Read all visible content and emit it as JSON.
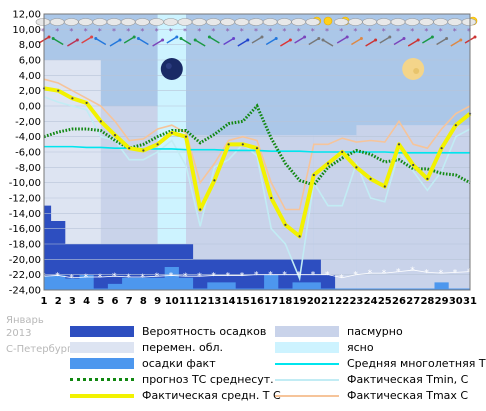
{
  "caption": {
    "month": "Январь",
    "year": "2013",
    "city": "С-Петербург"
  },
  "colors": {
    "overcast": "#c9d3ea",
    "partly_cloudy": "#dde4f2",
    "clear": "#cdf3ff",
    "precip_probability": "#2d4ec0",
    "precip_fact": "#4d97ee",
    "avg_climate": "#00e5ee",
    "forecast_avg": "#118811",
    "tmin": "#c2ecf4",
    "tmax": "#f6c49a",
    "actual_avg": "#f2f200"
  },
  "legend": [
    {
      "key": "precip_probability",
      "label": "Вероятность осадков",
      "kind": "box"
    },
    {
      "key": "overcast",
      "label": "пасмурно",
      "kind": "box"
    },
    {
      "key": "partly_cloudy",
      "label": "перемен. обл.",
      "kind": "box"
    },
    {
      "key": "clear",
      "label": "ясно",
      "kind": "box"
    },
    {
      "key": "precip_fact",
      "label": "осадки факт",
      "kind": "box"
    },
    {
      "key": "avg_climate",
      "label": "Средняя многолетняя Т С",
      "kind": "line"
    },
    {
      "key": "forecast_avg",
      "label": "прогноз ТС среднесут.",
      "kind": "dots"
    },
    {
      "key": "tmin",
      "label": "Фактическая Tmin, C",
      "kind": "line"
    },
    {
      "key": "actual_avg",
      "label": "Фактическая средн. Т С",
      "kind": "thick"
    },
    {
      "key": "tmax",
      "label": "Фактическая Tmax C",
      "kind": "line"
    }
  ],
  "chart_data": {
    "type": "line",
    "x_ticks": [
      "1",
      "2",
      "3",
      "4",
      "5",
      "6",
      "7",
      "8",
      "9",
      "10",
      "11",
      "12",
      "13",
      "14",
      "15",
      "16",
      "17",
      "18",
      "19",
      "20",
      "21",
      "22",
      "23",
      "24",
      "25",
      "26",
      "27",
      "28",
      "29",
      "30",
      "31"
    ],
    "y_ticks": [
      "12,00",
      "10,00",
      "8,00",
      "6,00",
      "4,00",
      "2,00",
      "0,00",
      "-2,00",
      "-4,00",
      "-6,00",
      "-8,00",
      "-10,00",
      "-12,00",
      "-14,00",
      "-16,00",
      "-18,00",
      "-20,00",
      "-22,00",
      "-24,00"
    ],
    "ylim": [
      -24,
      12
    ],
    "xlim": [
      1,
      31
    ],
    "grid": true,
    "series": [
      {
        "key": "avg_climate",
        "style": "line",
        "values": [
          -5.3,
          -5.3,
          -5.3,
          -5.4,
          -5.4,
          -5.5,
          -5.5,
          -5.6,
          -5.6,
          -5.6,
          -5.7,
          -5.7,
          -5.7,
          -5.8,
          -5.8,
          -5.8,
          -5.9,
          -5.9,
          -5.9,
          -6.0,
          -6.0,
          -6.0,
          -6.0,
          -6.0,
          -6.0,
          -6.1,
          -6.1,
          -6.1,
          -6.1,
          -6.1,
          -6.1
        ]
      },
      {
        "key": "forecast_avg",
        "style": "dots",
        "values": [
          -4.0,
          -3.4,
          -3.0,
          -3.0,
          -3.2,
          -4.5,
          -5.5,
          -5.0,
          -4.0,
          -3.2,
          -3.2,
          -4.8,
          -3.7,
          -2.3,
          -2.0,
          0.0,
          -4.2,
          -7.5,
          -9.7,
          -10.3,
          -8.0,
          -6.8,
          -5.8,
          -6.3,
          -7.3,
          -7.0,
          -8.2,
          -8.2,
          -8.8,
          -9.0,
          -10.0
        ]
      },
      {
        "key": "tmin",
        "style": "line",
        "values": [
          1.2,
          0.5,
          0.0,
          -0.5,
          -4.0,
          -4.5,
          -7.0,
          -7.0,
          -6.0,
          -4.5,
          -7.8,
          -15.7,
          -8.0,
          -7.0,
          -5.0,
          -6.5,
          -16.0,
          -18.0,
          -22.5,
          -10.0,
          -13.0,
          -13.0,
          -7.5,
          -12.0,
          -12.5,
          -6.0,
          -8.5,
          -11.0,
          -8.5,
          -4.0,
          -3.0
        ]
      },
      {
        "key": "tmax",
        "style": "line",
        "values": [
          3.5,
          3.0,
          2.0,
          1.0,
          0.0,
          -2.0,
          -4.5,
          -4.3,
          -3.0,
          -2.5,
          -3.5,
          -10.0,
          -7.5,
          -4.5,
          -4.0,
          -4.5,
          -10.0,
          -13.5,
          -13.5,
          -5.0,
          -5.0,
          -4.2,
          -4.7,
          -4.5,
          -4.7,
          -2.0,
          -5.0,
          -5.5,
          -3.0,
          -1.0,
          0.0
        ]
      },
      {
        "key": "actual_avg",
        "style": "thick",
        "values": [
          2.3,
          2.0,
          1.0,
          0.4,
          -2.0,
          -3.8,
          -5.5,
          -5.8,
          -5.0,
          -3.5,
          -4.0,
          -13.5,
          -9.7,
          -5.0,
          -5.0,
          -5.5,
          -12.0,
          -15.5,
          -17.0,
          -9.0,
          -7.5,
          -6.0,
          -8.0,
          -9.5,
          -10.5,
          -5.0,
          -7.7,
          -9.5,
          -5.5,
          -2.5,
          -1.0
        ]
      },
      {
        "key": "precip_probability",
        "style": "area",
        "base": -24,
        "values": [
          -13,
          -15,
          -18,
          -18,
          -18,
          -18,
          -18,
          -18,
          -18,
          -18,
          -18,
          -20,
          -20,
          -20,
          -20,
          -20,
          -20,
          -20,
          -20,
          -20,
          -22,
          -24,
          -24,
          -24,
          -24,
          -24,
          -24,
          -24,
          -24,
          -24,
          -24
        ]
      },
      {
        "key": "precip_fact",
        "style": "area",
        "base": -24,
        "values": [
          -22.2,
          -22.1,
          -22.5,
          -22.0,
          -23.8,
          -23.2,
          -22.4,
          -22.4,
          -22.4,
          -21.0,
          -22.4,
          -23.8,
          -23.0,
          -23.0,
          -23.8,
          -23.8,
          -22.0,
          -23.8,
          -23.0,
          -23.0,
          -23.8,
          -23.8,
          -23.8,
          -23.8,
          -23.8,
          -23.8,
          -23.8,
          -23.8,
          -23.0,
          -23.8,
          -23.8
        ]
      },
      {
        "key": "precip_marks",
        "style": "stars",
        "values": [
          -22.2,
          -22.1,
          -22.4,
          -22.3,
          -22.3,
          -22.2,
          -22.3,
          -22.3,
          -22.2,
          -22.1,
          -22.2,
          -22.2,
          -22.1,
          -22.1,
          -22.1,
          -22.0,
          -22.0,
          -22.0,
          -22.0,
          -22.0,
          -22.0,
          -22.4,
          -22.0,
          -21.8,
          -21.8,
          -21.6,
          -21.4,
          -21.7,
          -21.8,
          -21.7,
          -21.6
        ]
      }
    ],
    "sky_bands": [
      {
        "key": "overcast",
        "from": 1,
        "to": 9,
        "top": 0.0
      },
      {
        "key": "overcast",
        "from": 9,
        "to": 11,
        "top": -2.0
      },
      {
        "key": "overcast",
        "from": 11,
        "to": 20,
        "top": -3.8
      },
      {
        "key": "overcast",
        "from": 20,
        "to": 23,
        "top": -3.8
      },
      {
        "key": "overcast",
        "from": 23,
        "to": 31,
        "top": -2.5
      },
      {
        "key": "partly_cloudy",
        "from": 1,
        "to": 5,
        "top": 6.0
      },
      {
        "key": "clear",
        "from": 9,
        "to": 11,
        "top": 12.0
      }
    ],
    "weather_icons": {
      "sky": [
        "cloud",
        "cloud",
        "cloud",
        "cloud",
        "cloud",
        "cloud",
        "cloud",
        "cloud",
        "cloud",
        "cloud",
        "cloud",
        "cloud",
        "cloud",
        "cloud",
        "cloud",
        "cloud",
        "cloud",
        "cloud",
        "cloud",
        "sun-cloud",
        "sun",
        "sun-cloud",
        "cloud",
        "cloud",
        "cloud",
        "cloud",
        "cloud",
        "cloud",
        "cloud",
        "cloud",
        "sun-cloud"
      ],
      "wind_colors": [
        "#cc3333",
        "#1a9944",
        "#bb3355",
        "#dd4444",
        "#2277dd",
        "#2277dd",
        "#1a9944",
        "#2277dd",
        "#7a44bb",
        "#2277dd",
        "#1a9944",
        "#1a9944",
        "#1a9944",
        "#6644cc",
        "#2244cc",
        "#777777",
        "#2277dd",
        "#dd3333",
        "#7a44bb",
        "#777777",
        "#777777",
        "#7a44bb",
        "#dd8844",
        "#cc3333",
        "#777777",
        "#7a44bb",
        "#cc3333",
        "#1a9944",
        "#777777",
        "#dd8844",
        "#cc3333"
      ]
    },
    "moons": [
      {
        "phase": "new",
        "day": 10
      },
      {
        "phase": "full",
        "day": 27
      }
    ]
  }
}
